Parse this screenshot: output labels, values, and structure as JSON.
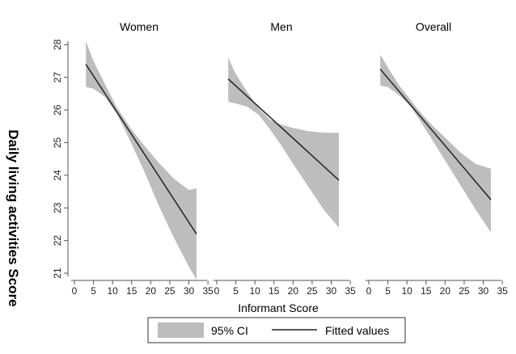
{
  "chart_data": {
    "type": "line",
    "ylabel": "Daily living activities Score",
    "xlabel": "Informant Score",
    "xlim": [
      0,
      35
    ],
    "ylim": [
      21,
      28
    ],
    "xticks": [
      "0",
      "5",
      "10",
      "15",
      "20",
      "25",
      "30",
      "35"
    ],
    "yticks": [
      "21",
      "22",
      "23",
      "24",
      "25",
      "26",
      "27",
      "28"
    ],
    "grid": false,
    "legend_position": "bottom",
    "legend": {
      "ci_label": "95% CI",
      "line_label": "Fitted values"
    },
    "colors": {
      "ci_fill": "#bdbdbd",
      "line": "#222222",
      "panel_bg": "#ffffff",
      "outer_bg": "#ffffff"
    },
    "panels": [
      {
        "title": "Women",
        "fitted": {
          "x": [
            3,
            32
          ],
          "y": [
            27.4,
            22.2
          ]
        },
        "ci": {
          "x": [
            3,
            5,
            8,
            11,
            13,
            15,
            18,
            22,
            26,
            30,
            32
          ],
          "upper": [
            28.1,
            27.5,
            26.8,
            26.1,
            25.75,
            25.4,
            24.95,
            24.4,
            23.9,
            23.55,
            23.6
          ],
          "lower": [
            26.7,
            26.65,
            26.4,
            25.9,
            25.45,
            24.95,
            24.2,
            23.1,
            22.1,
            21.2,
            20.8
          ]
        }
      },
      {
        "title": "Men",
        "fitted": {
          "x": [
            3,
            32
          ],
          "y": [
            26.95,
            23.85
          ]
        },
        "ci": {
          "x": [
            3,
            5,
            8,
            11,
            14,
            17,
            20,
            24,
            28,
            32
          ],
          "upper": [
            27.6,
            27.1,
            26.55,
            26.05,
            25.7,
            25.55,
            25.45,
            25.35,
            25.3,
            25.3
          ],
          "lower": [
            26.25,
            26.2,
            26.1,
            25.85,
            25.4,
            24.9,
            24.35,
            23.65,
            22.95,
            22.4
          ]
        }
      },
      {
        "title": "Overall",
        "fitted": {
          "x": [
            3,
            32
          ],
          "y": [
            27.25,
            23.25
          ]
        },
        "ci": {
          "x": [
            3,
            5,
            8,
            11,
            13,
            16,
            20,
            24,
            28,
            32
          ],
          "upper": [
            27.7,
            27.3,
            26.75,
            26.3,
            26.0,
            25.6,
            25.15,
            24.7,
            24.35,
            24.2
          ],
          "lower": [
            26.75,
            26.7,
            26.45,
            26.1,
            25.75,
            25.2,
            24.45,
            23.7,
            22.95,
            22.25
          ]
        }
      }
    ]
  }
}
